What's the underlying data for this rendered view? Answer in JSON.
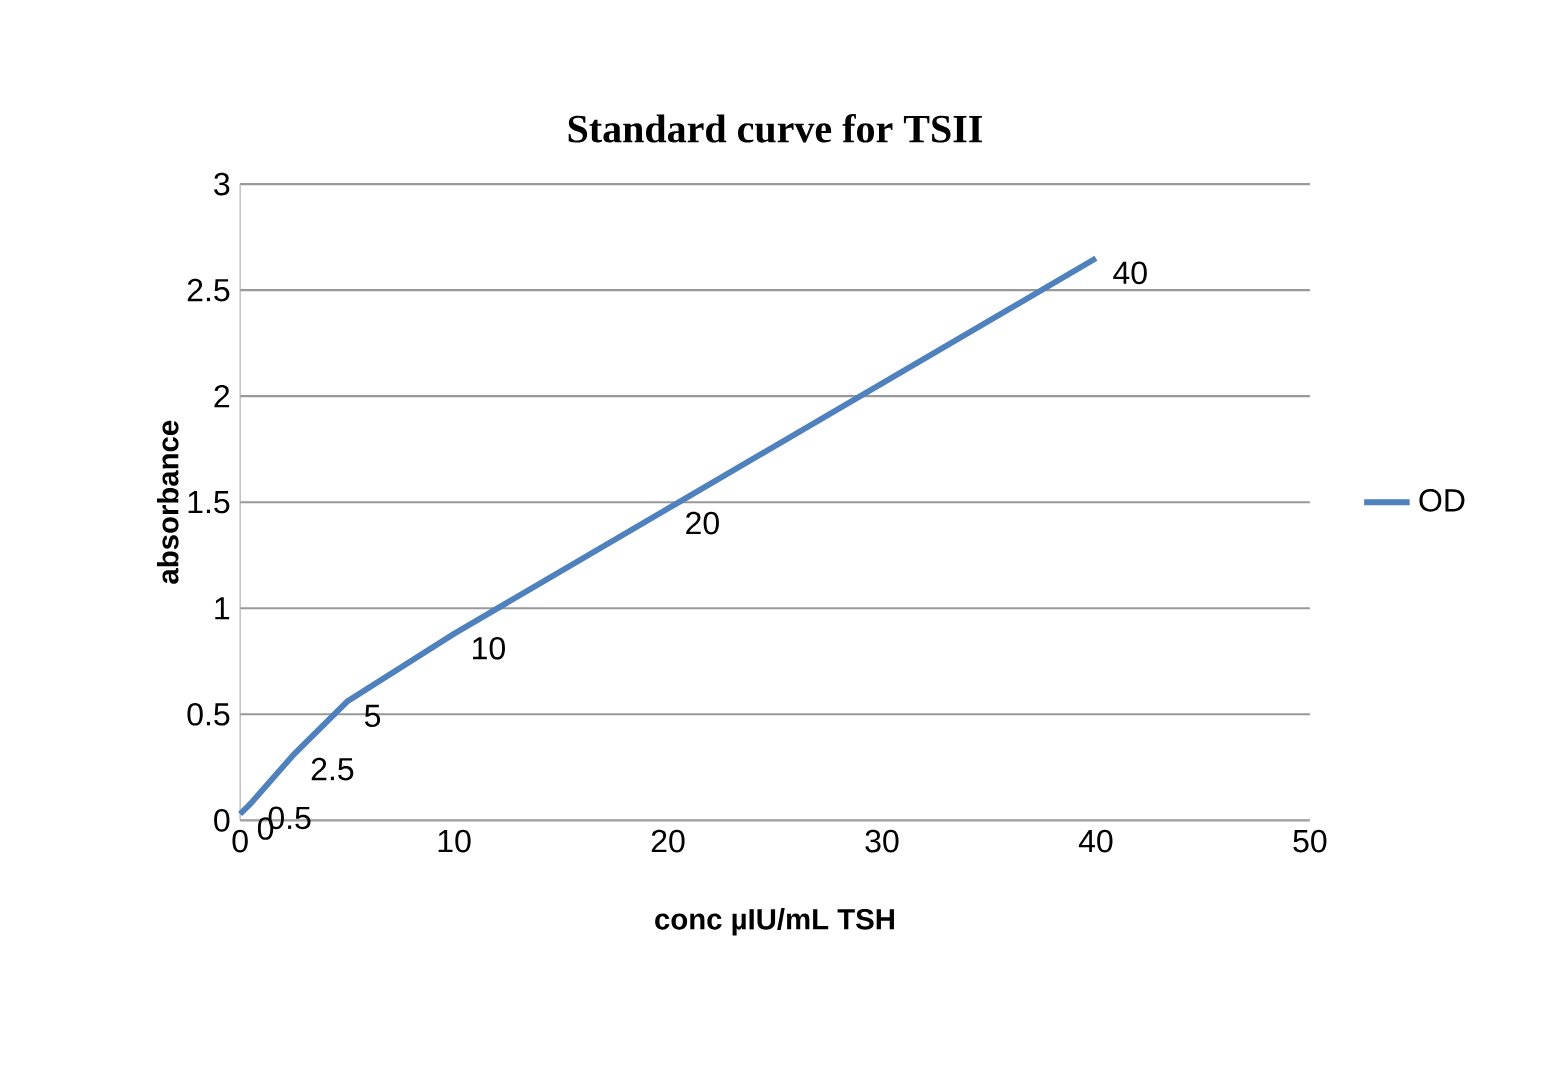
{
  "chart_data": {
    "type": "line",
    "title": "Standard curve for TSII",
    "xlabel": "conc µIU/mL TSH",
    "ylabel": "absorbance",
    "x": [
      0,
      0.5,
      2.5,
      5,
      10,
      20,
      40
    ],
    "series": [
      {
        "name": "OD",
        "color": "#4f81bd",
        "values": [
          0.03,
          0.08,
          0.31,
          0.56,
          0.88,
          1.47,
          2.65
        ]
      }
    ],
    "annotations": [
      {
        "text": "0",
        "x": 0,
        "y": 0.03
      },
      {
        "text": "0.5",
        "x": 0.5,
        "y": 0.08
      },
      {
        "text": "2.5",
        "x": 2.5,
        "y": 0.31
      },
      {
        "text": "5",
        "x": 5,
        "y": 0.56
      },
      {
        "text": "10",
        "x": 10,
        "y": 0.88
      },
      {
        "text": "20",
        "x": 20,
        "y": 1.47
      },
      {
        "text": "40",
        "x": 40,
        "y": 2.65
      }
    ],
    "xlim": [
      0,
      50
    ],
    "xticks": [
      0,
      10,
      20,
      30,
      40,
      50
    ],
    "ylim": [
      0,
      3
    ],
    "yticks": [
      0,
      0.5,
      1,
      1.5,
      2,
      2.5,
      3
    ],
    "grid": "y",
    "legend": "right",
    "marker": "none",
    "line_style": "solid"
  }
}
